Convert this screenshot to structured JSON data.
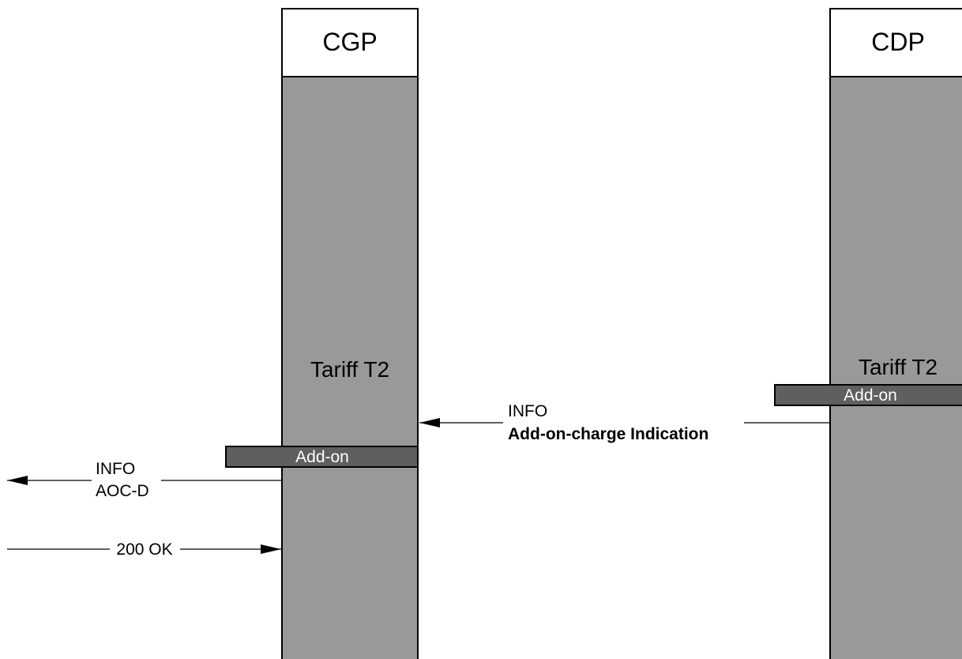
{
  "entities": {
    "cgp": {
      "name": "CGP",
      "tariff": "Tariff T2",
      "addon": "Add-on"
    },
    "cdp": {
      "name": "CDP",
      "tariff": "Tariff T2",
      "addon": "Add-on"
    }
  },
  "messages": {
    "info_cdp_to_cgp": {
      "line1": "INFO",
      "line2": "Add-on-charge Indication"
    },
    "info_cgp_out": {
      "line1": "INFO",
      "line2": "AOC-D"
    },
    "ok_in": {
      "label": "200 OK"
    }
  },
  "colors": {
    "lifeline_fill": "#999999",
    "addon_fill": "#5f5f5f",
    "header_fill": "#ffffff",
    "stroke": "#000000"
  }
}
